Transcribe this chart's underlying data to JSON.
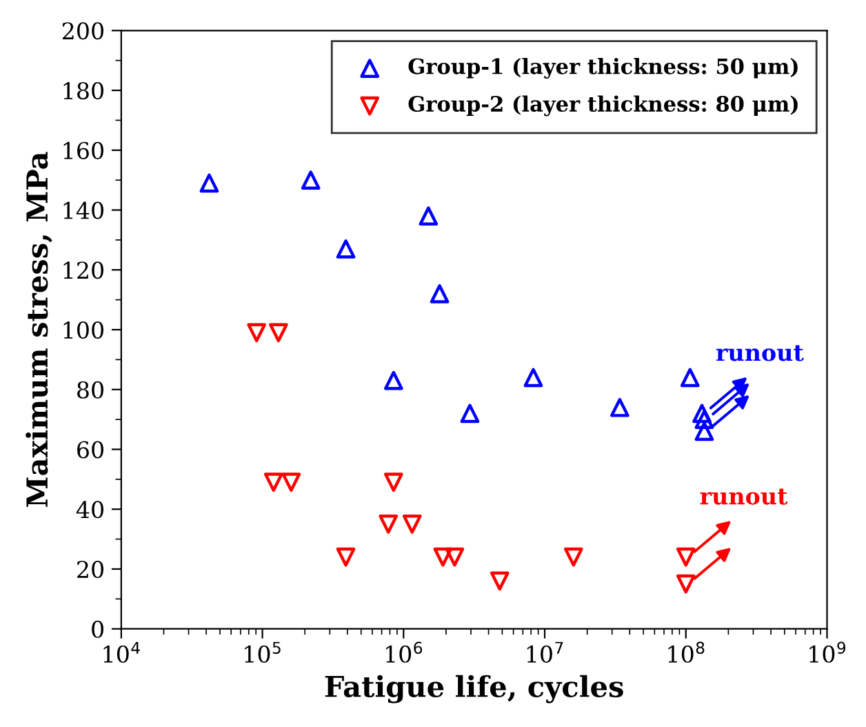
{
  "chart_data": {
    "type": "scatter",
    "xlabel": "Fatigue life, cycles",
    "ylabel": "Maximum stress, MPa",
    "log": "x",
    "xlim": [
      10000,
      1000000000
    ],
    "xticks": [
      {
        "value": 10000,
        "label": "10$^{4}$"
      },
      {
        "value": 100000,
        "label": "10$^{5}$"
      },
      {
        "value": 1000000,
        "label": "10$^{6}$"
      },
      {
        "value": 10000000,
        "label": "10$^{7}$"
      },
      {
        "value": 100000000,
        "label": "10$^{8}$"
      },
      {
        "value": 1000000000,
        "label": "10$^{9}$"
      }
    ],
    "ylim": [
      0,
      200
    ],
    "yticks": [
      0,
      20,
      40,
      60,
      80,
      100,
      120,
      140,
      160,
      180,
      200
    ],
    "grid": false,
    "legend": "top right",
    "series": [
      {
        "name": "Group-1 (layer thickness: 50 μm)",
        "color": "#0000ff",
        "marker": "triangle",
        "x": [
          42000,
          220000,
          1500000,
          390000,
          1800000,
          850000,
          2950000,
          8300000,
          34000000,
          107000000
        ],
        "values": [
          149,
          150,
          138,
          127,
          112,
          83,
          72,
          84,
          74,
          84
        ]
      },
      {
        "name": "Group-2 (layer thickness: 80 μm)",
        "color": "#ff0000",
        "marker": "triangle_down",
        "x": [
          91000,
          130000,
          120000,
          160000,
          850000,
          780000,
          1150000,
          390000,
          1900000,
          2300000,
          4800000,
          16000000
        ],
        "values": [
          99,
          99,
          49,
          49,
          49,
          35,
          35,
          24,
          24,
          24,
          16,
          24
        ]
      },
      {
        "color": "#0000ff",
        "marker": "triangle",
        "x": [
          130000000,
          135000000,
          135000000
        ],
        "values": [
          72,
          70,
          66
        ]
      },
      {
        "color": "#ff0000",
        "marker": "triangle_down",
        "x": [
          100000000,
          100000000
        ],
        "values": [
          24,
          15
        ]
      }
    ],
    "annotations": [
      {
        "text": "runout",
        "x": 130000000,
        "y": 72
      },
      {
        "text": "runout",
        "x": 100000000,
        "y": 24
      }
    ]
  }
}
